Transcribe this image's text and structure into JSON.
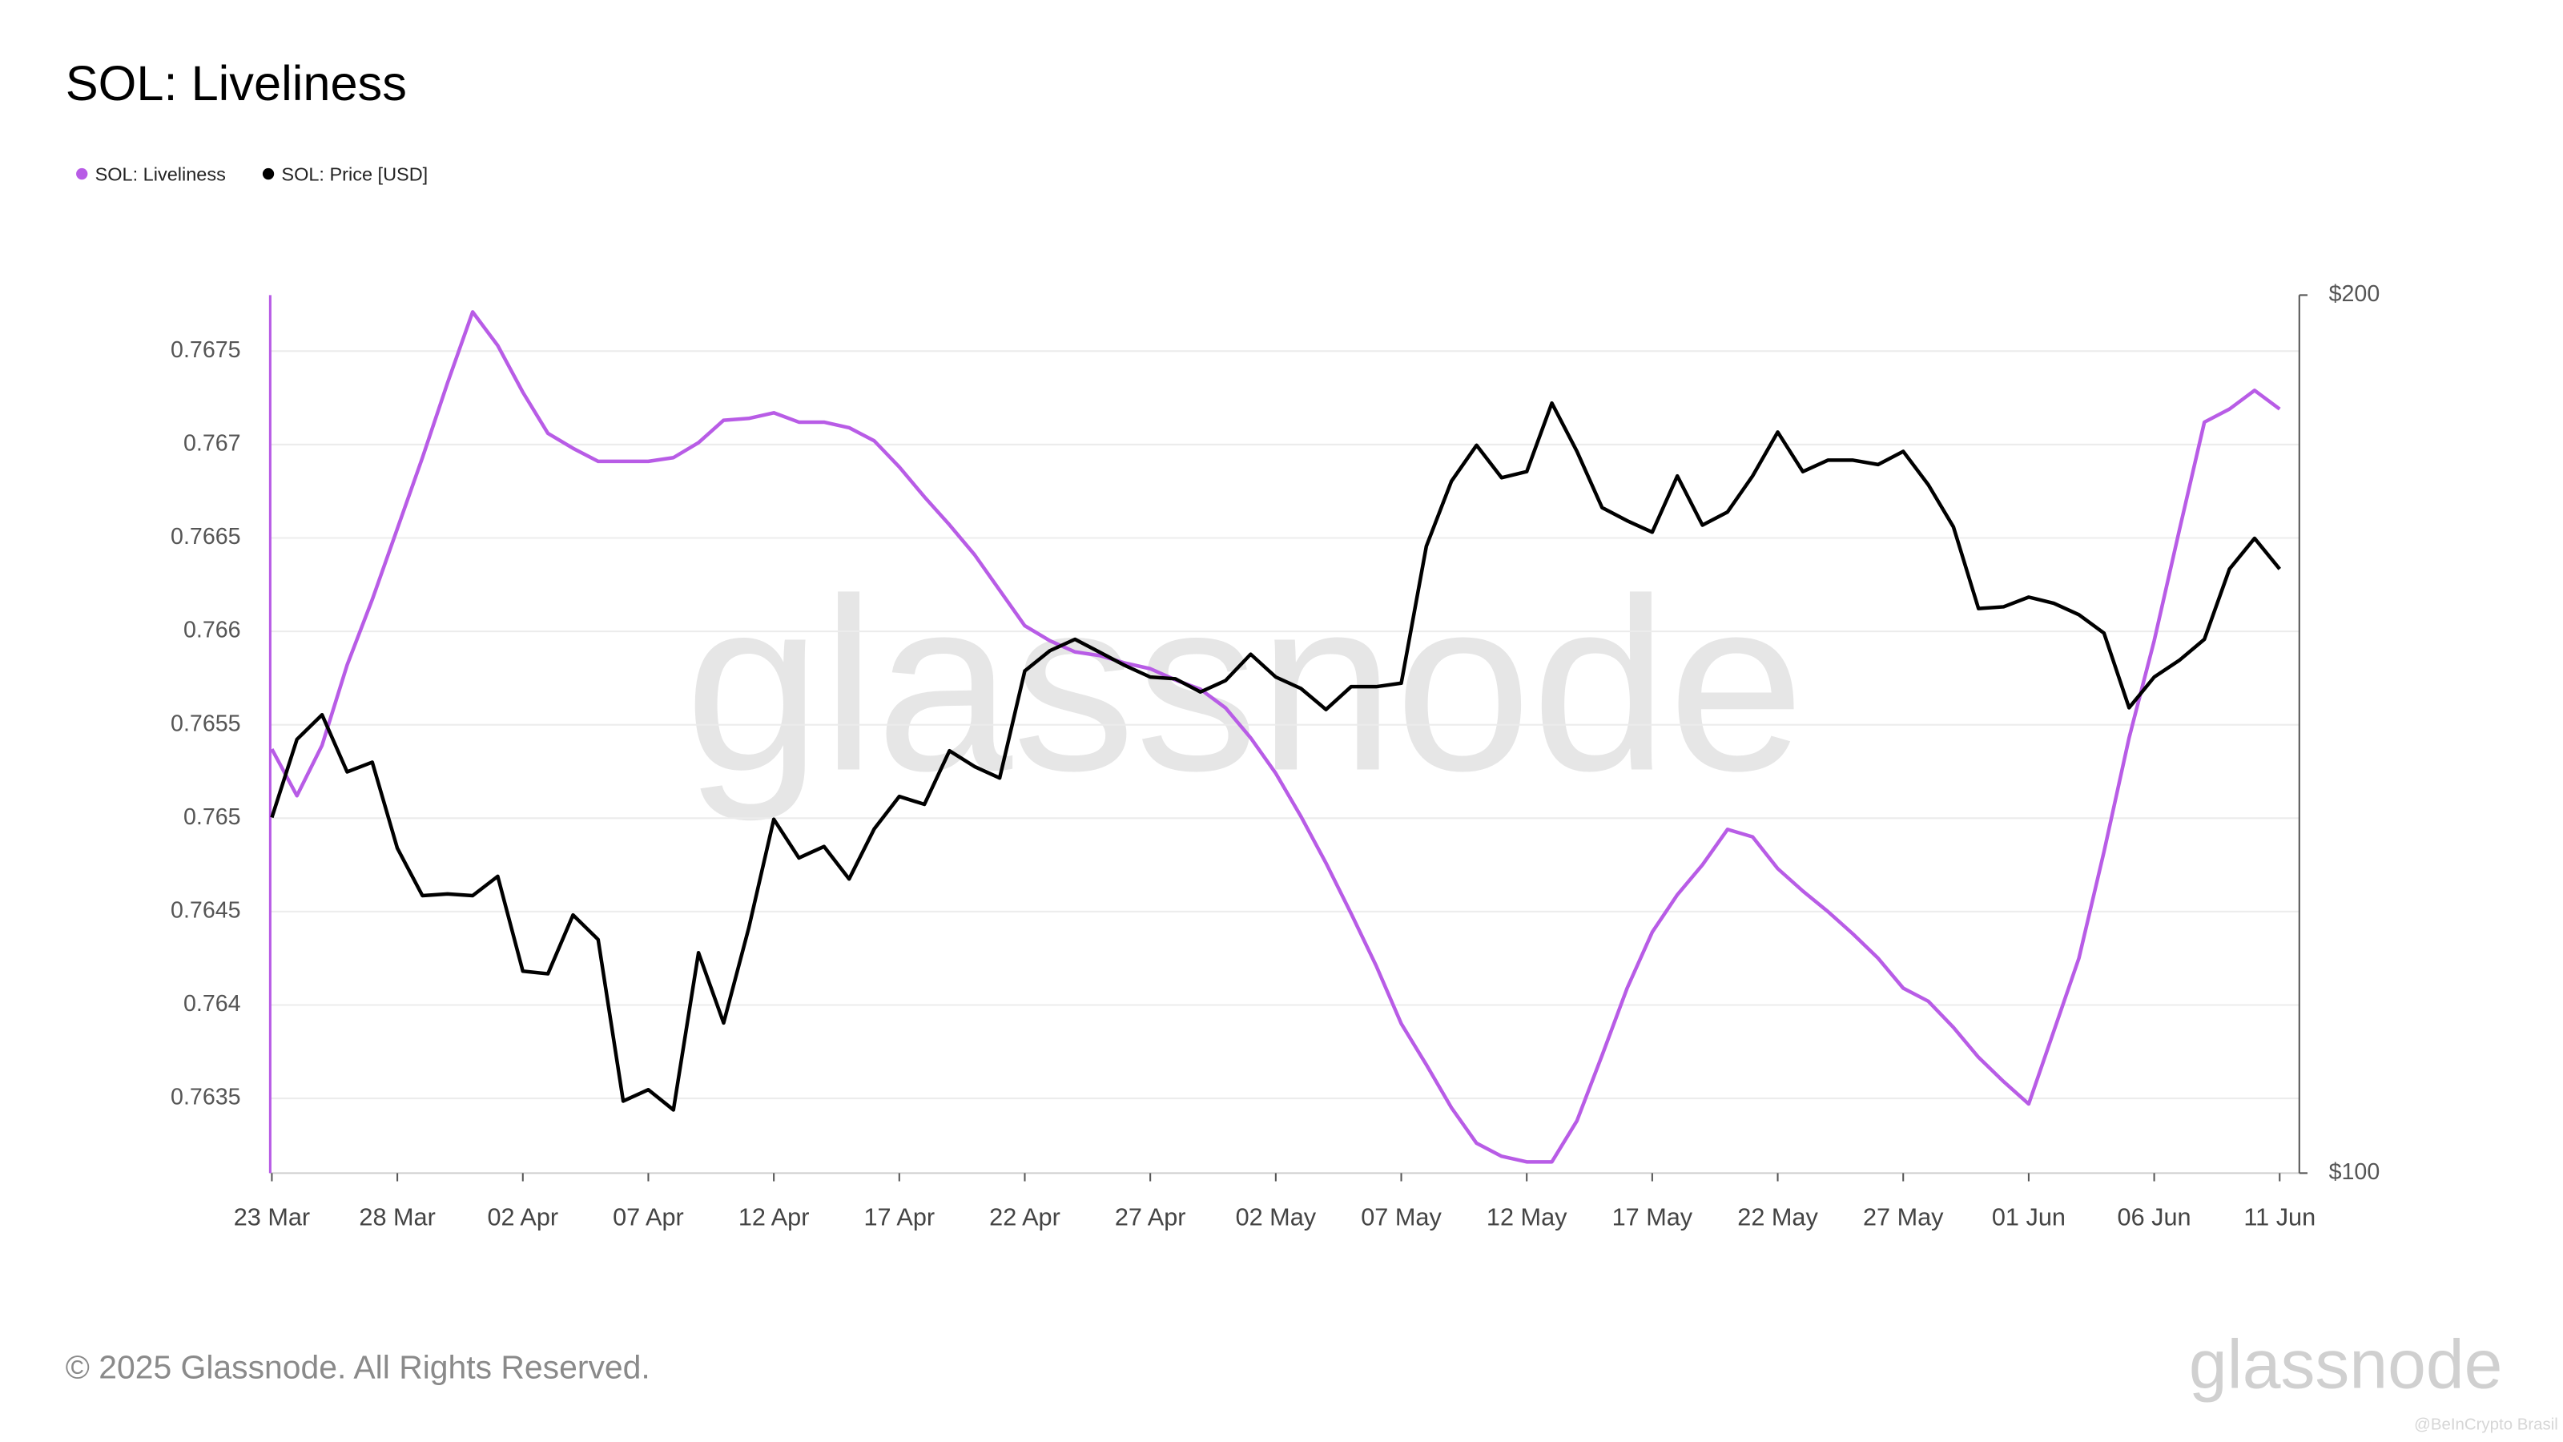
{
  "chart_data": {
    "type": "line",
    "title": "SOL: Liveliness",
    "categories": [
      "23 Mar",
      null,
      null,
      null,
      null,
      "28 Mar",
      null,
      null,
      null,
      null,
      "02 Apr",
      null,
      null,
      null,
      null,
      "07 Apr",
      null,
      null,
      null,
      null,
      "12 Apr",
      null,
      null,
      null,
      null,
      "17 Apr",
      null,
      null,
      null,
      null,
      "22 Apr",
      null,
      null,
      null,
      null,
      "27 Apr",
      null,
      null,
      null,
      null,
      "02 May",
      null,
      null,
      null,
      null,
      "07 May",
      null,
      null,
      null,
      null,
      "12 May",
      null,
      null,
      null,
      null,
      "17 May",
      null,
      null,
      null,
      null,
      "22 May",
      null,
      null,
      null,
      null,
      "27 May",
      null,
      null,
      null,
      null,
      "01 Jun",
      null,
      null,
      null,
      null,
      "06 Jun",
      null,
      null,
      null,
      null,
      "11 Jun"
    ],
    "series": [
      {
        "name": "SOL: Liveliness",
        "color": "#b85ce6",
        "values": [
          0.76537,
          0.76512,
          0.76539,
          0.76582,
          0.76617,
          0.76655,
          0.76693,
          0.76733,
          0.76771,
          0.76753,
          0.76728,
          0.76706,
          0.76698,
          0.76691,
          0.76691,
          0.76691,
          0.76693,
          0.76701,
          0.76713,
          0.76714,
          0.76717,
          0.76712,
          0.76712,
          0.76709,
          0.76702,
          0.76688,
          0.76672,
          0.76657,
          0.76641,
          0.76622,
          0.76603,
          0.76595,
          0.76589,
          0.76587,
          0.76583,
          0.7658,
          0.76574,
          0.76569,
          0.76559,
          0.76543,
          0.76524,
          0.76501,
          0.76476,
          0.76449,
          0.76421,
          0.7639,
          0.76368,
          0.76345,
          0.76326,
          0.76319,
          0.76316,
          0.76316,
          0.76338,
          0.76373,
          0.76409,
          0.76439,
          0.76459,
          0.76475,
          0.76494,
          0.7649,
          0.76473,
          0.76461,
          0.7645,
          0.76438,
          0.76425,
          0.76409,
          0.76402,
          0.76388,
          0.76372,
          0.76359,
          0.76347,
          0.76386,
          0.76425,
          0.76482,
          0.76543,
          0.76595,
          0.76654,
          0.76712,
          0.76719,
          0.76729,
          0.76719
        ]
      },
      {
        "name": "SOL: Price [USD]",
        "color": "#000000",
        "axis": "y2",
        "values": [
          140.5,
          149.4,
          152.2,
          145.7,
          146.8,
          137.0,
          131.6,
          131.8,
          131.6,
          133.8,
          123.0,
          122.7,
          129.4,
          126.6,
          108.2,
          109.5,
          107.2,
          125.1,
          117.1,
          127.9,
          140.3,
          135.9,
          137.2,
          133.5,
          139.2,
          142.9,
          142.0,
          148.1,
          146.3,
          145.0,
          157.2,
          159.5,
          160.8,
          159.3,
          157.8,
          156.5,
          156.3,
          154.8,
          156.1,
          159.1,
          156.5,
          155.2,
          152.8,
          155.4,
          155.4,
          155.8,
          171.4,
          178.8,
          182.9,
          179.2,
          179.9,
          187.7,
          182.2,
          175.8,
          174.3,
          173.0,
          179.4,
          173.8,
          175.3,
          179.4,
          184.4,
          179.9,
          181.2,
          181.2,
          180.7,
          182.2,
          178.4,
          173.6,
          164.3,
          164.5,
          165.6,
          164.9,
          163.6,
          161.5,
          153.0,
          156.5,
          158.4,
          160.8,
          168.8,
          172.3,
          168.8
        ]
      }
    ],
    "ylim": [
      0.7631,
      0.7678
    ],
    "yticks": [
      0.7635,
      0.764,
      0.7645,
      0.765,
      0.7655,
      0.766,
      0.7665,
      0.767,
      0.7675
    ],
    "y2lim": [
      100,
      200
    ],
    "y2ticks": [
      {
        "value": 100,
        "label": "$100"
      },
      {
        "value": 200,
        "label": "$200"
      }
    ],
    "grid": true,
    "legend": "top-left",
    "watermark": "glassnode",
    "copyright": "© 2025 Glassnode. All Rights Reserved.",
    "logo": "glassnode",
    "credit": "@BeInCrypto Brasil"
  }
}
